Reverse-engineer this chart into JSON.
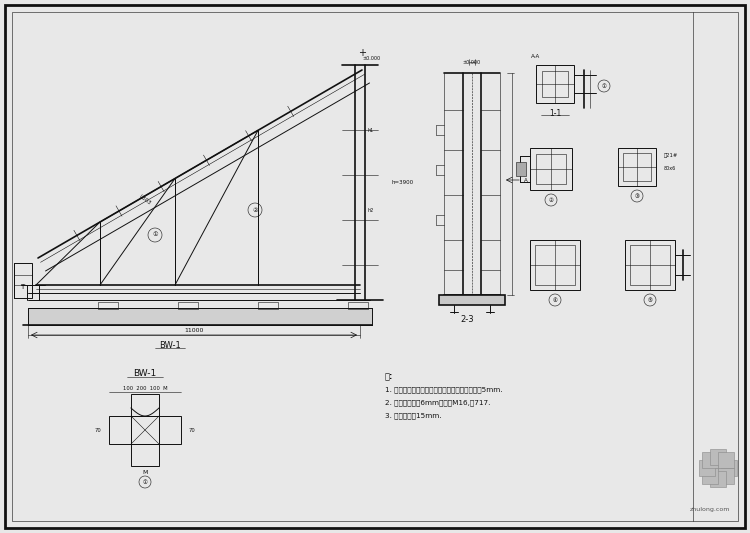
{
  "bg_color": "#e8e8e8",
  "paper_color": "#f5f5f0",
  "line_color": "#111111",
  "title_label": "BW-1",
  "note_title": "注:",
  "notes": [
    "1. 钢材、焊缝按图纸，其余钢板规格及焊缝厚度5mm.",
    "2. 螺栓、垫板宽6mm，螺栓M16,共717.",
    "3. 防锈漆厚度15mm."
  ],
  "watermark": "zhulong.com"
}
